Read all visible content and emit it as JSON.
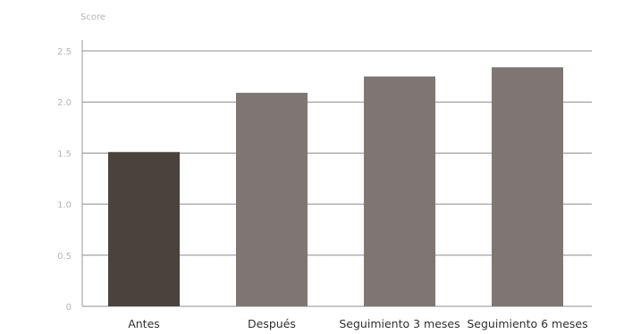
{
  "chart_data": {
    "type": "bar",
    "title": "",
    "xlabel": "",
    "ylabel": "Score",
    "categories": [
      "Antes",
      "Después",
      "Seguimiento 3 meses",
      "Seguimiento 6 meses"
    ],
    "values": [
      1.51,
      2.09,
      2.25,
      2.34
    ],
    "ylim": [
      0,
      2.5
    ],
    "yticks": [
      0,
      0.5,
      1.0,
      1.5,
      2.0,
      2.5
    ],
    "ytick_labels": [
      "0",
      "0.5",
      "1.0",
      "1.5",
      "2.0",
      "2.5"
    ],
    "grid": true,
    "legend": "none",
    "colors": [
      "#4a423c",
      "#7f7673",
      "#7f7673",
      "#7f7673"
    ],
    "gridline_color": "#8c8c8c"
  }
}
